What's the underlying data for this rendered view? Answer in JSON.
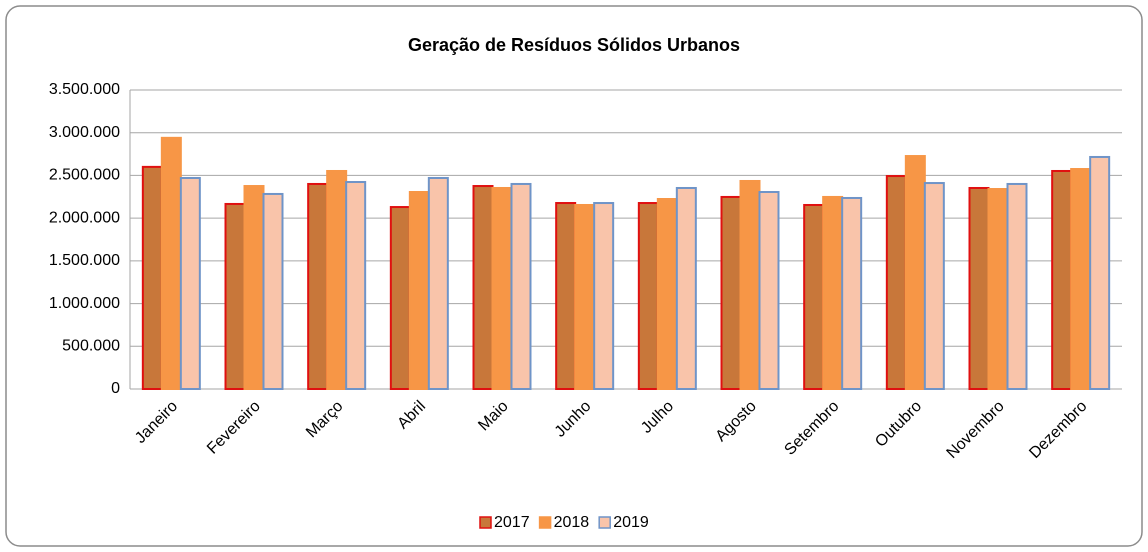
{
  "chart_data": {
    "type": "bar",
    "title": "Geração de Resíduos Sólidos Urbanos",
    "categories": [
      "Janeiro",
      "Fevereiro",
      "Março",
      "Abril",
      "Maio",
      "Junho",
      "Julho",
      "Agosto",
      "Setembro",
      "Outubro",
      "Novembro",
      "Dezembro"
    ],
    "series": [
      {
        "name": "2017",
        "color": "#c8773a",
        "border": "#e01010",
        "values": [
          2600000,
          2166000,
          2400000,
          2130000,
          2376000,
          2177000,
          2177000,
          2248000,
          2154000,
          2493000,
          2353000,
          2552000
        ]
      },
      {
        "name": "2018",
        "color": "#f79646",
        "border": "#f79646",
        "values": [
          2940000,
          2376000,
          2552000,
          2306000,
          2353000,
          2154000,
          2224000,
          2435000,
          2248000,
          2727000,
          2341000,
          2575000
        ]
      },
      {
        "name": "2019",
        "color": "#f9c4aa",
        "border": "#6f94c8",
        "values": [
          2470000,
          2283000,
          2423000,
          2470000,
          2400000,
          2177000,
          2353000,
          2306000,
          2236000,
          2411000,
          2400000,
          2716000
        ]
      }
    ],
    "ylim": [
      0,
      3500000
    ],
    "yticks": [
      0,
      {
        "value": 500000,
        "label": "500.000"
      },
      {
        "value": 1000000,
        "label": "1.000.000"
      },
      {
        "value": 1500000,
        "label": "1.500.000"
      },
      {
        "value": 2000000,
        "label": "2.000.000"
      },
      {
        "value": 2500000,
        "label": "2.500.000"
      },
      {
        "value": 3000000,
        "label": "3.000.000"
      },
      {
        "value": 3500000,
        "label": "3.500.000"
      }
    ],
    "grid": true,
    "legend": "bottom"
  }
}
